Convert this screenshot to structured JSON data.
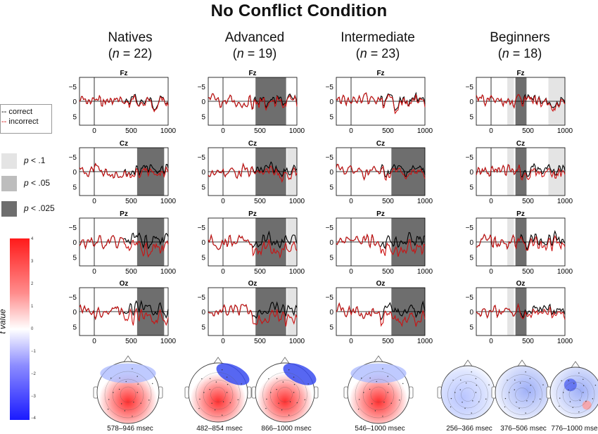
{
  "title": "No Conflict Condition",
  "groups": [
    {
      "name": "Natives",
      "n_label": "(n = 22)",
      "n_prefix": "(",
      "n_var": "n",
      "n_rest": " = 22)"
    },
    {
      "name": "Advanced",
      "n_label": "(n = 19)",
      "n_prefix": "(",
      "n_var": "n",
      "n_rest": " = 19)"
    },
    {
      "name": "Intermediate",
      "n_label": "(n = 23)",
      "n_prefix": "(",
      "n_var": "n",
      "n_rest": " = 23)"
    },
    {
      "name": "Beginners",
      "n_label": "(n = 18)",
      "n_prefix": "(",
      "n_var": "n",
      "n_rest": " = 18)"
    }
  ],
  "legend": {
    "correct": "correct",
    "incorrect": "incorrect",
    "correct_color": "#000000",
    "incorrect_color": "#cc1111"
  },
  "significance": [
    {
      "p": "p",
      "label": " < .1",
      "color": "#e4e4e4"
    },
    {
      "p": "p",
      "label": " < .05",
      "color": "#bdbdbd"
    },
    {
      "p": "p",
      "label": " < .025",
      "color": "#6e6e6e"
    }
  ],
  "colorbar": {
    "label": "t value",
    "ticks": [
      "4",
      "3",
      "2",
      "1",
      "0",
      "−1",
      "−2",
      "−3",
      "−4"
    ],
    "max_color": "#ff1a1a",
    "min_color": "#1a1aff"
  },
  "chart_data": {
    "type": "line",
    "xlim": [
      -200,
      1000
    ],
    "ylim": [
      -8,
      8
    ],
    "y_reversed": true,
    "xticks": [
      "0",
      "500",
      "1000"
    ],
    "yticks": [
      "−5",
      "0",
      "5"
    ],
    "electrodes": [
      "Fz",
      "Cz",
      "Pz",
      "Oz"
    ],
    "series_names": [
      "correct",
      "incorrect"
    ],
    "windows": {
      "Natives": {
        "Fz": [],
        "Cz": [
          [
            580,
            946,
            "p < .025"
          ]
        ],
        "Pz": [
          [
            580,
            946,
            "p < .025"
          ]
        ],
        "Oz": [
          [
            580,
            946,
            "p < .025"
          ]
        ]
      },
      "Advanced": {
        "Fz": [
          [
            440,
            854,
            "p < .025"
          ]
        ],
        "Cz": [
          [
            440,
            854,
            "p < .025"
          ],
          [
            866,
            1000,
            "p < .1"
          ]
        ],
        "Pz": [
          [
            440,
            854,
            "p < .025"
          ],
          [
            866,
            1000,
            "p < .1"
          ]
        ],
        "Oz": [
          [
            440,
            854,
            "p < .025"
          ],
          [
            866,
            1000,
            "p < .1"
          ]
        ]
      },
      "Intermediate": {
        "Fz": [],
        "Cz": [
          [
            546,
            1000,
            "p < .025"
          ]
        ],
        "Pz": [
          [
            546,
            1000,
            "p < .025"
          ]
        ],
        "Oz": [
          [
            546,
            1000,
            "p < .025"
          ]
        ]
      },
      "Beginners": {
        "Fz": [
          [
            220,
            310,
            "p < .1"
          ],
          [
            330,
            480,
            "p < .025"
          ],
          [
            776,
            1000,
            "p < .1"
          ]
        ],
        "Cz": [
          [
            220,
            310,
            "p < .1"
          ],
          [
            330,
            480,
            "p < .025"
          ],
          [
            776,
            1000,
            "p < .1"
          ]
        ],
        "Pz": [
          [
            220,
            310,
            "p < .1"
          ],
          [
            330,
            480,
            "p < .025"
          ]
        ],
        "Oz": [
          [
            220,
            310,
            "p < .1"
          ],
          [
            330,
            480,
            "p < .025"
          ]
        ]
      }
    }
  },
  "topomaps": [
    {
      "label": "578–946 msec",
      "pattern": "posterior-red"
    },
    {
      "label": "482–854 msec",
      "pattern": "posterior-red-blue-right"
    },
    {
      "label": "866–1000 msec",
      "pattern": "posterior-red-blue-right"
    },
    {
      "label": "546–1000 msec",
      "pattern": "posterior-red"
    },
    {
      "label": "256–366 msec",
      "pattern": "blue-diffuse"
    },
    {
      "label": "376–506 msec",
      "pattern": "blue-diffuse"
    },
    {
      "label": "776–1000 msec",
      "pattern": "blue-mixed"
    }
  ]
}
